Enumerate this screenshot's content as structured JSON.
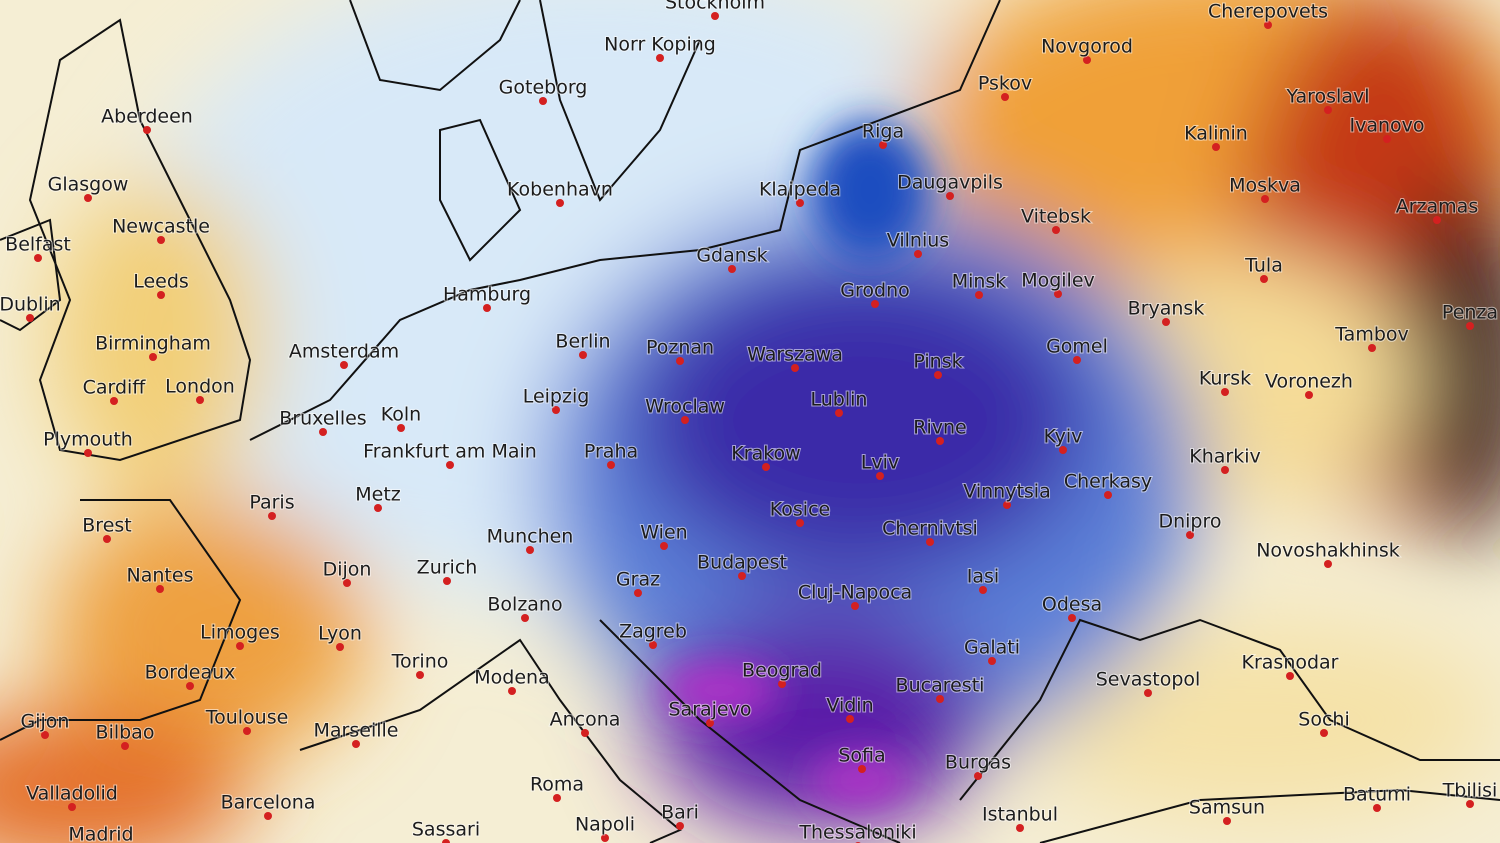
{
  "map": {
    "cities": [
      "Stockholm",
      "Norr Koping",
      "Goteborg",
      "Aberdeen",
      "Glasgow",
      "Kobenhavn",
      "Riga",
      "Klaipeda",
      "Daugavpils",
      "Novgorod",
      "Pskov",
      "Cherepovets",
      "Yaroslavl",
      "Kalinin",
      "Ivanovo",
      "Moskva",
      "Arzamas",
      "Vitebsk",
      "Belfast",
      "Newcastle",
      "Leeds",
      "Dublin",
      "Gdansk",
      "Vilnius",
      "Grodno",
      "Minsk",
      "Mogilev",
      "Bryansk",
      "Tula",
      "Tambov",
      "Penza",
      "Hamburg",
      "Birmingham",
      "Amsterdam",
      "Berlin",
      "Poznan",
      "Warszawa",
      "Pinsk",
      "Gomel",
      "Kursk",
      "Voronezh",
      "Cardiff",
      "London",
      "Leipzig",
      "Wroclaw",
      "Lublin",
      "Bruxelles",
      "Koln",
      "Plymouth",
      "Frankfurt am Main",
      "Praha",
      "Krakow",
      "Rivne",
      "Kyiv",
      "Kharkiv",
      "Lviv",
      "Vinnytsia",
      "Cherkasy",
      "Paris",
      "Metz",
      "Brest",
      "Kosice",
      "Dnipro",
      "Munchen",
      "Wien",
      "Chernivtsi",
      "Novoshakhinsk",
      "Dijon",
      "Zurich",
      "Graz",
      "Budapest",
      "Nantes",
      "Iasi",
      "Cluj-Napoca",
      "Bolzano",
      "Odesa",
      "Limoges",
      "Lyon",
      "Zagreb",
      "Torino",
      "Galati",
      "Krasnodar",
      "Bordeaux",
      "Modena",
      "Beograd",
      "Sevastopol",
      "Bucaresti",
      "Sarajevo",
      "Vidin",
      "Toulouse",
      "Gijon",
      "Bilbao",
      "Marseille",
      "Ancona",
      "Sochi",
      "Sofia",
      "Burgas",
      "Roma",
      "Valladolid",
      "Barcelona",
      "Batumi",
      "Tbilisi",
      "Samsun",
      "Istanbul",
      "Bari",
      "Madrid",
      "Sassari",
      "Napoli",
      "Thessaloniki"
    ]
  }
}
